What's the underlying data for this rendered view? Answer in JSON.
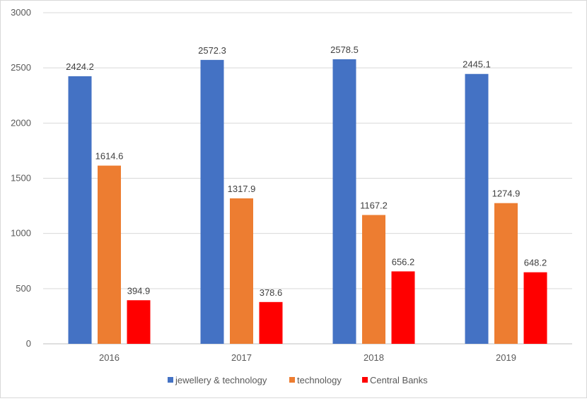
{
  "chart_data": {
    "type": "bar",
    "categories": [
      "2016",
      "2017",
      "2018",
      "2019"
    ],
    "series": [
      {
        "name": "jewellery & technology",
        "color": "#4472C4",
        "values": [
          2424.2,
          2572.3,
          2578.5,
          2445.1
        ],
        "labels": [
          "2424.2",
          "2572.3",
          "2578.5",
          "2445.1"
        ]
      },
      {
        "name": "technology",
        "color": "#ED7D31",
        "values": [
          1614.6,
          1317.9,
          1167.2,
          1274.9
        ],
        "labels": [
          "1614.6",
          "1317.9",
          "1167.2",
          "1274.9"
        ]
      },
      {
        "name": "Central Banks",
        "color": "#FF0000",
        "values": [
          394.9,
          378.6,
          656.2,
          648.2
        ],
        "labels": [
          "394.9",
          "378.6",
          "656.2",
          "648.2"
        ]
      }
    ],
    "y_ticks": [
      "0",
      "500",
      "1000",
      "1500",
      "2000",
      "2500",
      "3000"
    ],
    "ylim": [
      0,
      3000
    ],
    "grid": true,
    "legend_position": "bottom",
    "title": "",
    "xlabel": "",
    "ylabel": ""
  }
}
